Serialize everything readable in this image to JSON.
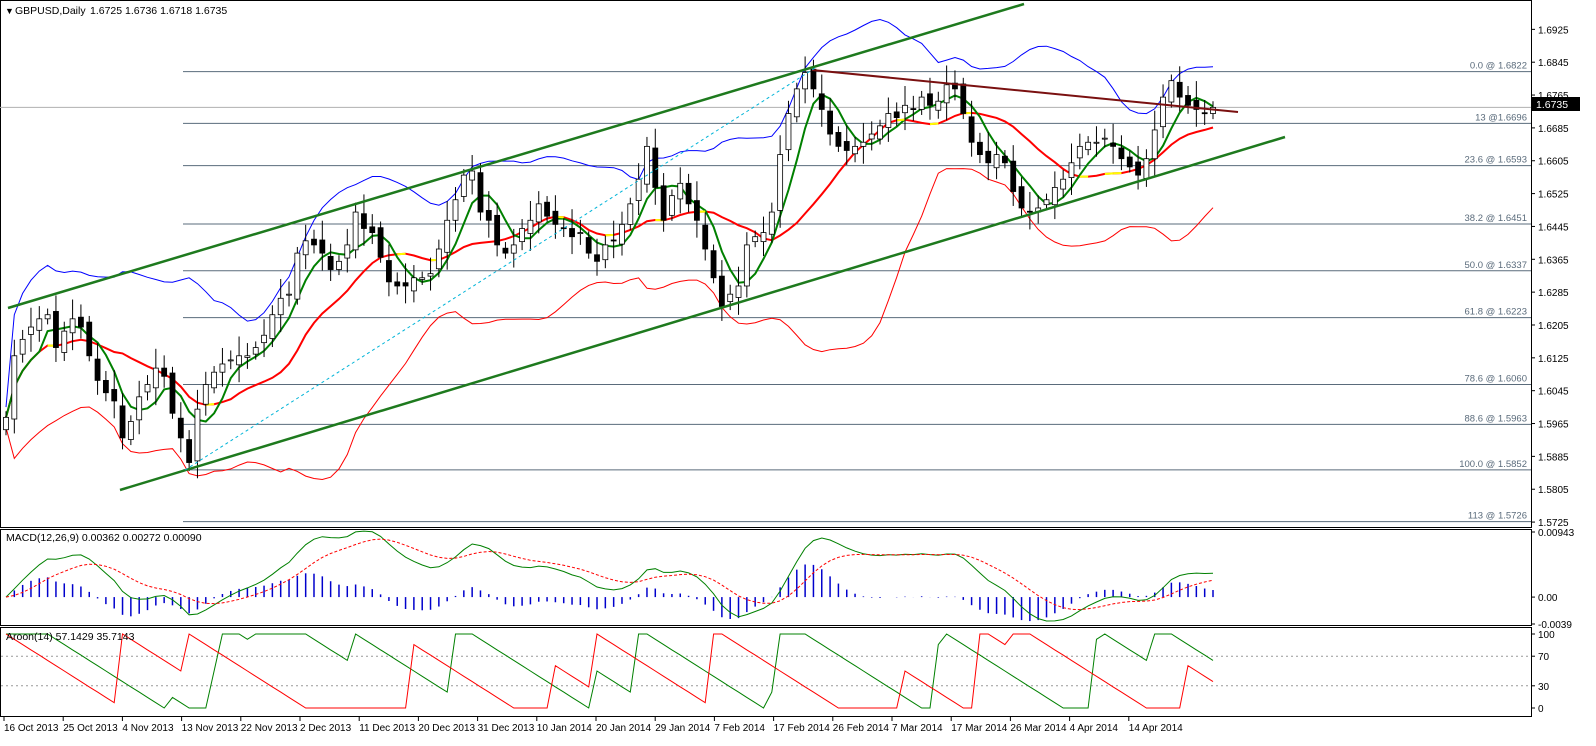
{
  "window": {
    "symbol_label": "GBPUSD,Daily",
    "ohlc_label": "1.6725 1.6736 1.6718 1.6735",
    "current_price_tag": "1.6735"
  },
  "price_axis": {
    "ticks": [
      "1.6925",
      "1.6845",
      "1.6765",
      "1.6685",
      "1.6605",
      "1.6525",
      "1.6445",
      "1.6365",
      "1.6285",
      "1.6205",
      "1.6125",
      "1.6045",
      "1.5965",
      "1.5885",
      "1.5805",
      "1.5725"
    ],
    "range": [
      1.5713,
      1.6977
    ]
  },
  "fibonacci": {
    "levels": [
      {
        "label": "0.0 @ 1.6822",
        "price": 1.6822
      },
      {
        "label": "13 @1.6696",
        "price": 1.6696
      },
      {
        "label": "23.6 @ 1.6593",
        "price": 1.6593
      },
      {
        "label": "38.2 @ 1.6451",
        "price": 1.6451
      },
      {
        "label": "50.0 @ 1.6337",
        "price": 1.6337
      },
      {
        "label": "61.8 @ 1.6223",
        "price": 1.6223
      },
      {
        "label": "78.6 @ 1.6060",
        "price": 1.606
      },
      {
        "label": "88.6 @ 1.5963",
        "price": 1.5963
      },
      {
        "label": "100.0 @ 1.5852",
        "price": 1.5852
      },
      {
        "label": "113 @ 1.5726",
        "price": 1.5726
      }
    ]
  },
  "macd": {
    "label": "MACD(12,26,9) 0.00362 0.00272 0.00090",
    "ticks": [
      "0.00943",
      "0.00",
      "-0.0039"
    ]
  },
  "aroon": {
    "label": "Aroon(14) 57.1429 35.7143",
    "ticks": [
      "100",
      "70",
      "30",
      "0"
    ]
  },
  "time_axis": {
    "labels": [
      "16 Oct 2013",
      "25 Oct 2013",
      "4 Nov 2013",
      "13 Nov 2013",
      "22 Nov 2013",
      "2 Dec 2013",
      "11 Dec 2013",
      "20 Dec 2013",
      "31 Dec 2013",
      "10 Jan 2014",
      "20 Jan 2014",
      "29 Jan 2014",
      "7 Feb 2014",
      "17 Feb 2014",
      "26 Feb 2014",
      "7 Mar 2014",
      "17 Mar 2014",
      "26 Mar 2014",
      "4 Apr 2014",
      "14 Apr 2014"
    ]
  },
  "colors": {
    "bull_candle": "#ffffff",
    "bear_candle": "#000000",
    "bollinger": "#0000ff",
    "bollinger_lower": "#ff0000",
    "ma_fast": "#008000",
    "ma_slow": "#ff0000",
    "ma_flat": "#ffff00",
    "channel": "#1e7a1e",
    "resistance": "#7a1010",
    "fib_line": "#5a6b7b",
    "macd_hist": "#0000cc",
    "macd_main": "#008000",
    "macd_signal": "#ff0000",
    "aroon_up": "#008000",
    "aroon_down": "#ff0000"
  },
  "chart_data": {
    "type": "candlestick",
    "title": "GBPUSD,Daily",
    "ohlc": {
      "open": 1.6725,
      "high": 1.6736,
      "low": 1.6718,
      "close": 1.6735
    },
    "close_series": [
      1.598,
      1.613,
      1.617,
      1.62,
      1.622,
      1.623,
      1.615,
      1.619,
      1.622,
      1.62,
      1.613,
      1.607,
      1.604,
      1.602,
      1.593,
      1.597,
      1.603,
      1.606,
      1.61,
      1.608,
      1.599,
      1.593,
      1.587,
      1.6,
      1.606,
      1.609,
      1.611,
      1.612,
      1.613,
      1.613,
      1.615,
      1.618,
      1.623,
      1.627,
      1.628,
      1.638,
      1.641,
      1.64,
      1.638,
      1.634,
      1.636,
      1.64,
      1.648,
      1.644,
      1.643,
      1.637,
      1.631,
      1.63,
      1.63,
      1.632,
      1.632,
      1.633,
      1.639,
      1.646,
      1.651,
      1.657,
      1.658,
      1.648,
      1.646,
      1.64,
      1.638,
      1.64,
      1.644,
      1.646,
      1.65,
      1.647,
      1.645,
      1.644,
      1.642,
      1.643,
      1.638,
      1.636,
      1.64,
      1.641,
      1.645,
      1.65,
      1.656,
      1.664,
      1.654,
      1.646,
      1.652,
      1.655,
      1.65,
      1.646,
      1.639,
      1.632,
      1.625,
      1.628,
      1.63,
      1.64,
      1.642,
      1.643,
      1.648,
      1.662,
      1.672,
      1.678,
      1.682,
      1.678,
      1.673,
      1.667,
      1.664,
      1.663,
      1.664,
      1.665,
      1.667,
      1.669,
      1.672,
      1.671,
      1.674,
      1.673,
      1.676,
      1.674,
      1.675,
      1.679,
      1.678,
      1.672,
      1.665,
      1.662,
      1.66,
      1.662,
      1.66,
      1.653,
      1.649,
      1.648,
      1.649,
      1.651,
      1.654,
      1.656,
      1.66,
      1.664,
      1.665,
      1.665,
      1.666,
      1.664,
      1.661,
      1.659,
      1.657,
      1.661,
      1.668,
      1.676,
      1.68,
      1.676,
      1.674,
      1.673,
      1.672,
      1.6735
    ],
    "macd_range": [
      -0.0039,
      0.00943
    ],
    "aroon_range": [
      0,
      100
    ]
  }
}
